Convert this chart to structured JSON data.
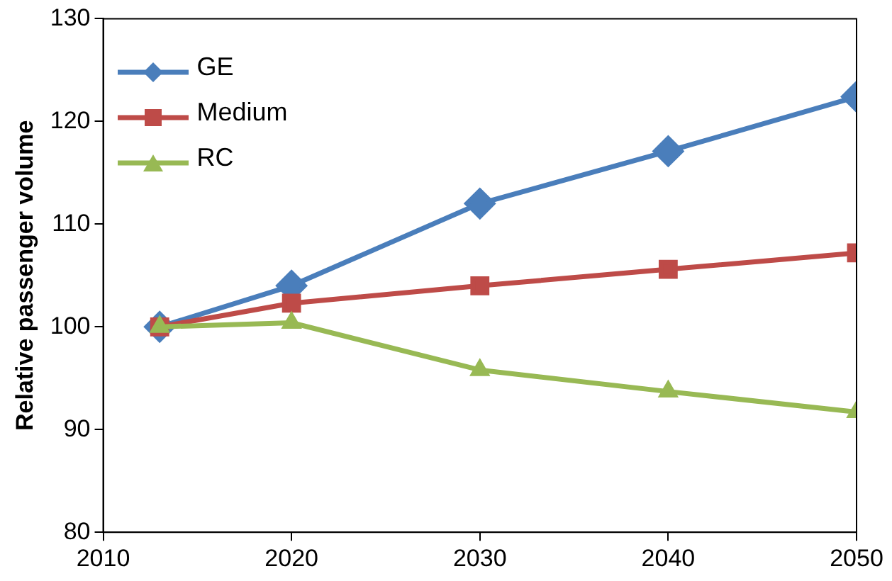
{
  "chart_data": {
    "type": "line",
    "ylabel": "Relative passenger volume",
    "x": [
      2013,
      2020,
      2030,
      2040,
      2050
    ],
    "series": [
      {
        "name": "GE",
        "color": "#4a7ebb",
        "marker": "diamond",
        "values": [
          100,
          104.0,
          112.0,
          117.1,
          122.4
        ]
      },
      {
        "name": "Medium",
        "color": "#be4b48",
        "marker": "square",
        "values": [
          100,
          102.3,
          104.0,
          105.6,
          107.2
        ]
      },
      {
        "name": "RC",
        "color": "#98b954",
        "marker": "triangle",
        "values": [
          100,
          100.4,
          95.8,
          93.7,
          91.7
        ]
      }
    ],
    "xlim": [
      2010,
      2050
    ],
    "xticks": [
      2010,
      2020,
      2030,
      2040,
      2050
    ],
    "ylim": [
      80,
      130
    ],
    "yticks": [
      80,
      90,
      100,
      110,
      120,
      130
    ],
    "grid": false,
    "legend": "top left",
    "line_style": "solid"
  }
}
